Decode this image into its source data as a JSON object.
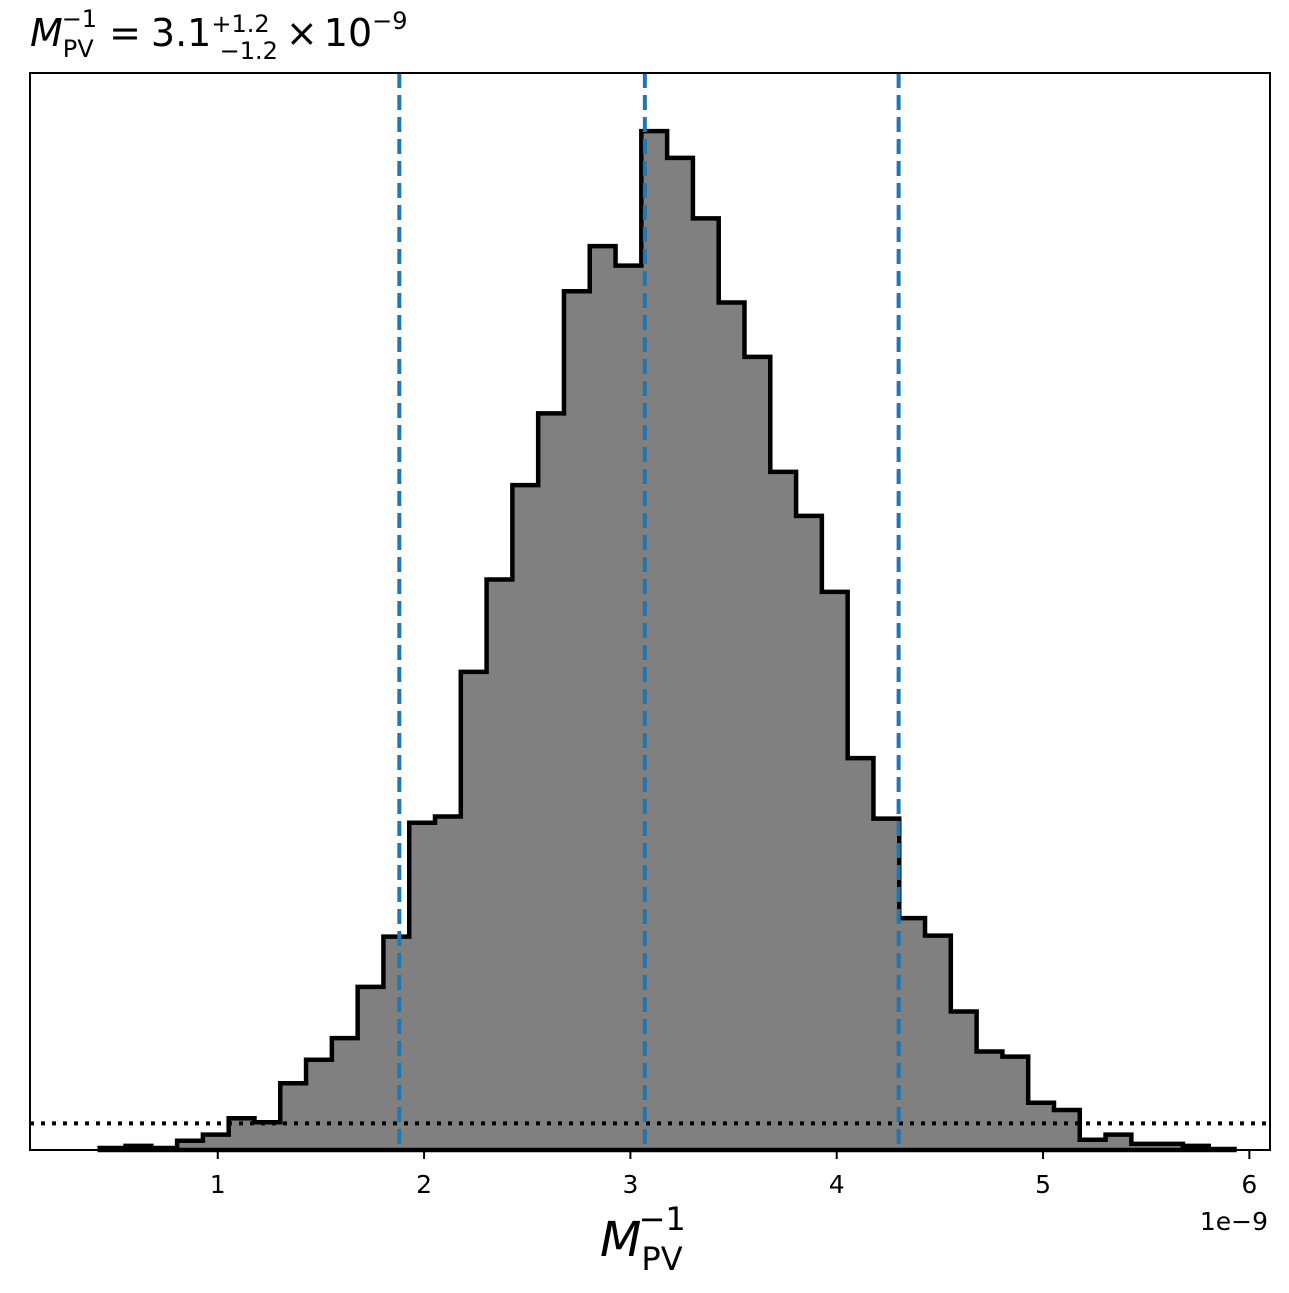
{
  "chart_data": {
    "type": "histogram",
    "title": {
      "symbol": "M",
      "symbol_sub": "PV",
      "symbol_sup": "−1",
      "equals": "=",
      "value": "3.1",
      "err_plus": "+1.2",
      "err_minus": "−1.2",
      "times": "×",
      "exp_base": "10",
      "exp_power": "−9"
    },
    "xlabel": {
      "symbol": "M",
      "sub": "PV",
      "sup": "−1"
    },
    "offset_text": "1e−9",
    "x_unit_scale": 1e-09,
    "xlim": [
      0.09,
      6.1
    ],
    "ylim": [
      0,
      1.0
    ],
    "x_ticks": [
      {
        "value": 1,
        "label": "1"
      },
      {
        "value": 2,
        "label": "2"
      },
      {
        "value": 3,
        "label": "3"
      },
      {
        "value": 4,
        "label": "4"
      },
      {
        "value": 5,
        "label": "5"
      },
      {
        "value": 6,
        "label": "6"
      }
    ],
    "bin_edges": [
      0.428,
      0.553,
      0.678,
      0.803,
      0.928,
      1.053,
      1.178,
      1.303,
      1.428,
      1.553,
      1.678,
      1.803,
      1.928,
      2.053,
      2.178,
      2.303,
      2.428,
      2.553,
      2.678,
      2.803,
      2.928,
      3.053,
      3.178,
      3.303,
      3.428,
      3.553,
      3.678,
      3.803,
      3.928,
      4.053,
      4.178,
      4.303,
      4.428,
      4.553,
      4.678,
      4.803,
      4.928,
      5.053,
      5.178,
      5.303,
      5.428,
      5.553,
      5.678,
      5.803,
      5.928
    ],
    "bin_counts": [
      0.002,
      0.004,
      0.002,
      0.009,
      0.015,
      0.031,
      0.027,
      0.065,
      0.088,
      0.109,
      0.159,
      0.208,
      0.319,
      0.325,
      0.466,
      0.556,
      0.648,
      0.718,
      0.837,
      0.881,
      0.862,
      0.993,
      0.967,
      0.908,
      0.826,
      0.773,
      0.661,
      0.618,
      0.544,
      0.382,
      0.323,
      0.226,
      0.209,
      0.135,
      0.096,
      0.091,
      0.046,
      0.039,
      0.01,
      0.015,
      0.006,
      0.006,
      0.004,
      0.001
    ],
    "vlines": [
      {
        "x": 1.88,
        "role": "lower",
        "style": "dashed",
        "color": "#1f77b4"
      },
      {
        "x": 3.07,
        "role": "median",
        "style": "dashed",
        "color": "#1f77b4"
      },
      {
        "x": 4.3,
        "role": "upper",
        "style": "dashed",
        "color": "#1f77b4"
      }
    ],
    "hline": {
      "y": 0.026,
      "style": "dotted",
      "color": "#000000"
    },
    "fill_color": "#808080",
    "edge_color": "#000000",
    "grid": false,
    "legend": "none"
  }
}
